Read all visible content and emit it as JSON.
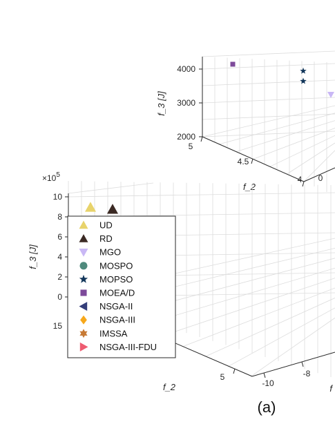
{
  "chart_data": [
    {
      "type": "scatter",
      "subplot": "top",
      "zlabel": "f_3 [J]",
      "ylabel": "f_2",
      "zticks": [
        "2000",
        "3000",
        "4000"
      ],
      "yticks": [
        "5",
        "4.5",
        "4"
      ],
      "xticks": [
        "0"
      ],
      "points": [
        {
          "series": "MOEA/D",
          "f2": 5.0,
          "f3": 4150
        },
        {
          "series": "MOPSO",
          "f2": 4.2,
          "f3": 3800
        },
        {
          "series": "MOPSO",
          "f2": 4.2,
          "f3": 3500
        },
        {
          "series": "MGO",
          "f2": 4.0,
          "f3": 3250
        }
      ]
    },
    {
      "type": "scatter",
      "subplot": "bottom",
      "zlabel": "f_3 [J]",
      "ylabel": "f_2",
      "xlabel": "f",
      "exponent": "×10^5",
      "zticks": [
        "0",
        "2",
        "4",
        "6",
        "8",
        "10"
      ],
      "yticks": [
        "15",
        "5"
      ],
      "xticks": [
        "-10",
        "-8"
      ],
      "points": [
        {
          "series": "UD",
          "f3": 9.5
        },
        {
          "series": "RD",
          "f3": 9.3
        }
      ],
      "legend": [
        {
          "name": "UD",
          "color": "#e8d36b",
          "marker": "triangle-up"
        },
        {
          "name": "RD",
          "color": "#3b2a24",
          "marker": "triangle-up"
        },
        {
          "name": "MGO",
          "color": "#c9b8f5",
          "marker": "triangle-down"
        },
        {
          "name": "MOSPO",
          "color": "#4f8a7d",
          "marker": "circle"
        },
        {
          "name": "MOPSO",
          "color": "#12365a",
          "marker": "star"
        },
        {
          "name": "MOEA/D",
          "color": "#7d4a9a",
          "marker": "square"
        },
        {
          "name": "NSGA-II",
          "color": "#343e7a",
          "marker": "triangle-left"
        },
        {
          "name": "NSGA-III",
          "color": "#f7a81b",
          "marker": "diamond"
        },
        {
          "name": "IMSSA",
          "color": "#c77a35",
          "marker": "hexagram"
        },
        {
          "name": "NSGA-III-FDU",
          "color": "#ee5c71",
          "marker": "triangle-right"
        }
      ],
      "legend_position": "left"
    }
  ],
  "panel_label": "(a)"
}
